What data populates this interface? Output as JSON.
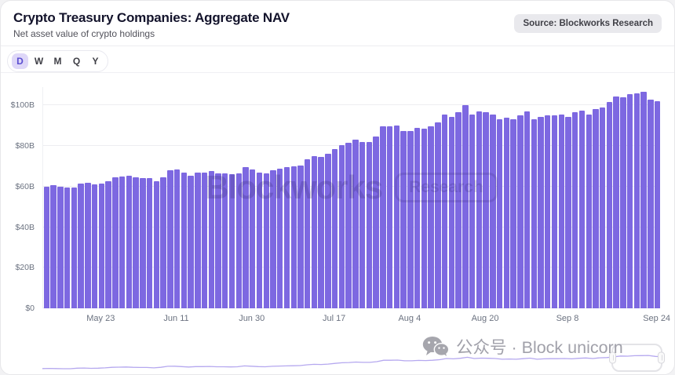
{
  "header": {
    "title": "Crypto Treasury Companies: Aggregate NAV",
    "subtitle": "Net asset value of crypto holdings",
    "source_label": "Source: Blockworks Research"
  },
  "range_selector": {
    "options": [
      "D",
      "W",
      "M",
      "Q",
      "Y"
    ],
    "selected": "D"
  },
  "watermark": {
    "brand": "Blockworks",
    "badge": "Research"
  },
  "footer_watermark": {
    "icon": "wechat-icon",
    "text": "公众号 · Block unicorn"
  },
  "colors": {
    "bar": "#7d68e1",
    "accent": "#5b4ed1",
    "selected_pill_bg": "#ded7f8",
    "grid": "#ededf1",
    "navigator_line": "#b5a8ef",
    "axis_text": "#6b7280"
  },
  "chart_data": {
    "type": "bar",
    "title": "Crypto Treasury Companies: Aggregate NAV",
    "subtitle": "Net asset value of crypto holdings",
    "unit": "$B",
    "grid": "horizontal",
    "legend": "none",
    "ylim": [
      0,
      109
    ],
    "y_ticks": [
      {
        "value": 100,
        "label": "$100B"
      },
      {
        "value": 80,
        "label": "$80B"
      },
      {
        "value": 60,
        "label": "$60B"
      },
      {
        "value": 40,
        "label": "$40B"
      },
      {
        "value": 20,
        "label": "$20B"
      },
      {
        "value": 0,
        "label": "$0"
      }
    ],
    "x_tick_labels": [
      {
        "index": 8,
        "label": "May 23"
      },
      {
        "index": 19,
        "label": "Jun 11"
      },
      {
        "index": 30,
        "label": "Jun 30"
      },
      {
        "index": 42,
        "label": "Jul 17"
      },
      {
        "index": 53,
        "label": "Aug 4"
      },
      {
        "index": 64,
        "label": "Aug 20"
      },
      {
        "index": 76,
        "label": "Sep 8"
      },
      {
        "index": 89,
        "label": "Sep 24"
      }
    ],
    "values": [
      60,
      60.5,
      60,
      59.5,
      59.5,
      61.5,
      62,
      61,
      61.5,
      62.5,
      64.5,
      65,
      65.5,
      64.5,
      64,
      64,
      62.5,
      64.5,
      68,
      68.5,
      67,
      65.5,
      67,
      67,
      67.5,
      66.5,
      66.5,
      66,
      66.5,
      69.5,
      68.5,
      67,
      66.5,
      68,
      69,
      69.5,
      70,
      70.5,
      73.5,
      75,
      74.5,
      76,
      78.5,
      80.5,
      81.5,
      83,
      82,
      82,
      84.5,
      89.5,
      89.5,
      90,
      87.5,
      87.5,
      89,
      88.5,
      89.5,
      91.5,
      95.5,
      94.5,
      96.5,
      100,
      95.5,
      97,
      96.5,
      95.5,
      93,
      94,
      93,
      95,
      97,
      93,
      94.5,
      95,
      95,
      95.5,
      94.5,
      96.5,
      97.5,
      95.5,
      98,
      99,
      101.5,
      104.5,
      104,
      105.5,
      106,
      106.5,
      103,
      102
    ]
  }
}
